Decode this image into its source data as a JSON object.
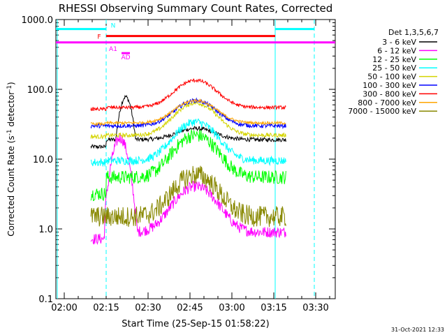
{
  "chart_data": {
    "type": "line",
    "title": "RHESSI Observing Summary Count Rates, Corrected",
    "xlabel": "Start Time (25-Sep-15 01:58:22)",
    "ylabel_main": "Corrected Count Rate (s",
    "ylabel_exp1": "-1",
    "ylabel_mid": " detector",
    "ylabel_exp2": "-1",
    "ylabel_end": ")",
    "y_scale": "log",
    "ylim": [
      0.1,
      1000.0
    ],
    "xlim_minutes": [
      -3,
      97
    ],
    "x_ticks": [
      {
        "label": "02:00",
        "min": 0
      },
      {
        "label": "02:15",
        "min": 15
      },
      {
        "label": "02:30",
        "min": 30
      },
      {
        "label": "02:45",
        "min": 45
      },
      {
        "label": "03:00",
        "min": 60
      },
      {
        "label": "03:15",
        "min": 75
      },
      {
        "label": "03:30",
        "min": 90
      }
    ],
    "y_ticks": [
      {
        "label": "0.1",
        "value": 0.1
      },
      {
        "label": "1.0",
        "value": 1.0
      },
      {
        "label": "10.0",
        "value": 10.0
      },
      {
        "label": "100.0",
        "value": 100.0
      },
      {
        "label": "1000.0",
        "value": 1000.0
      }
    ],
    "legend_title": "Det 1,3,5,6,7",
    "legend_placement": "right",
    "series": [
      {
        "name": "3 - 6 keV",
        "color": "#000000",
        "base": 19,
        "pre": 15,
        "hump": {
          "peak": 78,
          "center": 22,
          "width": 3
        },
        "flare": 1.45,
        "noise": 0.03
      },
      {
        "name": "6 - 12 keV",
        "color": "#ff00ff",
        "base": 0.9,
        "pre": 0.72,
        "hump": {
          "peak": 20,
          "center": 20,
          "width": 3.5
        },
        "flare": 4.5,
        "noise": 0.08
      },
      {
        "name": "12 - 25 keV",
        "color": "#00ff00",
        "base": 5.5,
        "pre": 3.2,
        "hump": {
          "peak": 0,
          "center": 20,
          "width": 3
        },
        "flare": 4.0,
        "noise": 0.1
      },
      {
        "name": "25 - 50 keV",
        "color": "#00ffff",
        "base": 9.5,
        "pre": 9.0,
        "hump": {
          "peak": 0,
          "center": 20,
          "width": 3
        },
        "flare": 3.6,
        "noise": 0.06
      },
      {
        "name": "50 - 100 keV",
        "color": "#d4d400",
        "base": 22,
        "pre": 21,
        "hump": {
          "peak": 0,
          "center": 20,
          "width": 3
        },
        "flare": 2.9,
        "noise": 0.03
      },
      {
        "name": "100 - 300 keV",
        "color": "#0000ff",
        "base": 30,
        "pre": 30,
        "hump": {
          "peak": 0,
          "center": 20,
          "width": 3
        },
        "flare": 2.3,
        "noise": 0.03
      },
      {
        "name": "300 - 800 keV",
        "color": "#ff0000",
        "base": 55,
        "pre": 52,
        "hump": {
          "peak": 0,
          "center": 20,
          "width": 3
        },
        "flare": 2.45,
        "noise": 0.025
      },
      {
        "name": "800 - 7000 keV",
        "color": "#ffa500",
        "base": 33,
        "pre": 32,
        "hump": {
          "peak": 0,
          "center": 20,
          "width": 3
        },
        "flare": 2.1,
        "noise": 0.02
      },
      {
        "name": "7000 - 15000 keV",
        "color": "#888800",
        "base": 1.5,
        "pre": 1.5,
        "hump": {
          "peak": 0,
          "center": 20,
          "width": 3
        },
        "flare": 4.0,
        "noise": 0.15
      }
    ],
    "flare_center_min": 47,
    "flare_width_min": 9,
    "data_start_min": 9.5,
    "data_end_min": 79.5,
    "eclipse_end_min": 15,
    "night_start_min": 75.5,
    "bars": [
      {
        "label": "N",
        "color": "#00ffff",
        "value": 730,
        "segments": [
          [
            -3,
            15
          ],
          [
            75.5,
            89.5
          ]
        ]
      },
      {
        "label": "F",
        "color": "#ff0000",
        "value": 580,
        "segments": [
          [
            15,
            75.5
          ]
        ]
      },
      {
        "label": "AD",
        "color": "#ff00ff",
        "value": 330,
        "segments": [
          [
            20.5,
            23.5
          ]
        ]
      },
      {
        "label": "A1",
        "color": "#ff00ff",
        "value": 470,
        "segments": [
          [
            -3,
            97
          ]
        ]
      }
    ],
    "vertical_lines": [
      {
        "min": -2.5,
        "color": "#00ffff",
        "style": "solid"
      },
      {
        "min": 15,
        "color": "#00ffff",
        "style": "dashed"
      },
      {
        "min": 75.5,
        "color": "#00ffff",
        "style": "solid"
      },
      {
        "min": 89.5,
        "color": "#00ffff",
        "style": "dashed"
      }
    ],
    "footer": "31-Oct-2021 12:33"
  }
}
